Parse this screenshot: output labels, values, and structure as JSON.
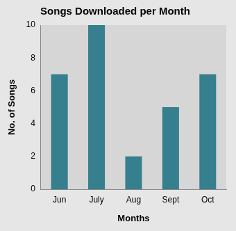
{
  "chart_data": {
    "type": "bar",
    "title": "Songs Downloaded per Month",
    "x_label": "Months",
    "y_label": "No. of Songs",
    "categories": [
      "Jun",
      "July",
      "Aug",
      "Sept",
      "Oct"
    ],
    "values": [
      7,
      10,
      2,
      5,
      7
    ],
    "color": "#357f8e",
    "ylim": [
      0,
      10
    ],
    "yticks": [
      0,
      2,
      4,
      6,
      8,
      10
    ],
    "grid": false
  }
}
